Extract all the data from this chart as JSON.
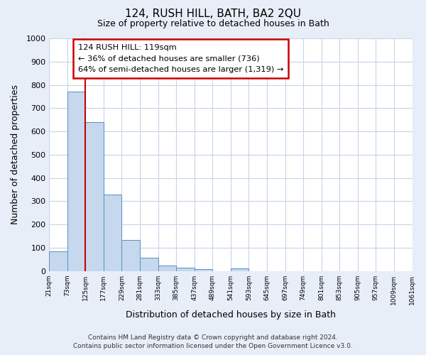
{
  "title": "124, RUSH HILL, BATH, BA2 2QU",
  "subtitle": "Size of property relative to detached houses in Bath",
  "xlabel": "Distribution of detached houses by size in Bath",
  "ylabel": "Number of detached properties",
  "bar_values": [
    85,
    770,
    640,
    330,
    133,
    58,
    22,
    15,
    8,
    0,
    10,
    0,
    0,
    0,
    0,
    0,
    0,
    0,
    0,
    0
  ],
  "bar_labels": [
    "21sqm",
    "73sqm",
    "125sqm",
    "177sqm",
    "229sqm",
    "281sqm",
    "333sqm",
    "385sqm",
    "437sqm",
    "489sqm",
    "541sqm",
    "593sqm",
    "645sqm",
    "697sqm",
    "749sqm",
    "801sqm",
    "853sqm",
    "905sqm",
    "957sqm",
    "1009sqm",
    "1061sqm"
  ],
  "bar_color": "#c5d8ee",
  "bar_edge_color": "#5a8fc0",
  "vertical_line_x": 2,
  "vertical_line_color": "#cc0000",
  "annotation_text_line1": "124 RUSH HILL: 119sqm",
  "annotation_text_line2": "← 36% of detached houses are smaller (736)",
  "annotation_text_line3": "64% of semi-detached houses are larger (1,319) →",
  "ylim": [
    0,
    1000
  ],
  "yticks": [
    0,
    100,
    200,
    300,
    400,
    500,
    600,
    700,
    800,
    900,
    1000
  ],
  "footer_line1": "Contains HM Land Registry data © Crown copyright and database right 2024.",
  "footer_line2": "Contains public sector information licensed under the Open Government Licence v3.0.",
  "bg_color": "#e8eef8",
  "plot_bg_color": "#ffffff",
  "grid_color": "#c8d4e8"
}
